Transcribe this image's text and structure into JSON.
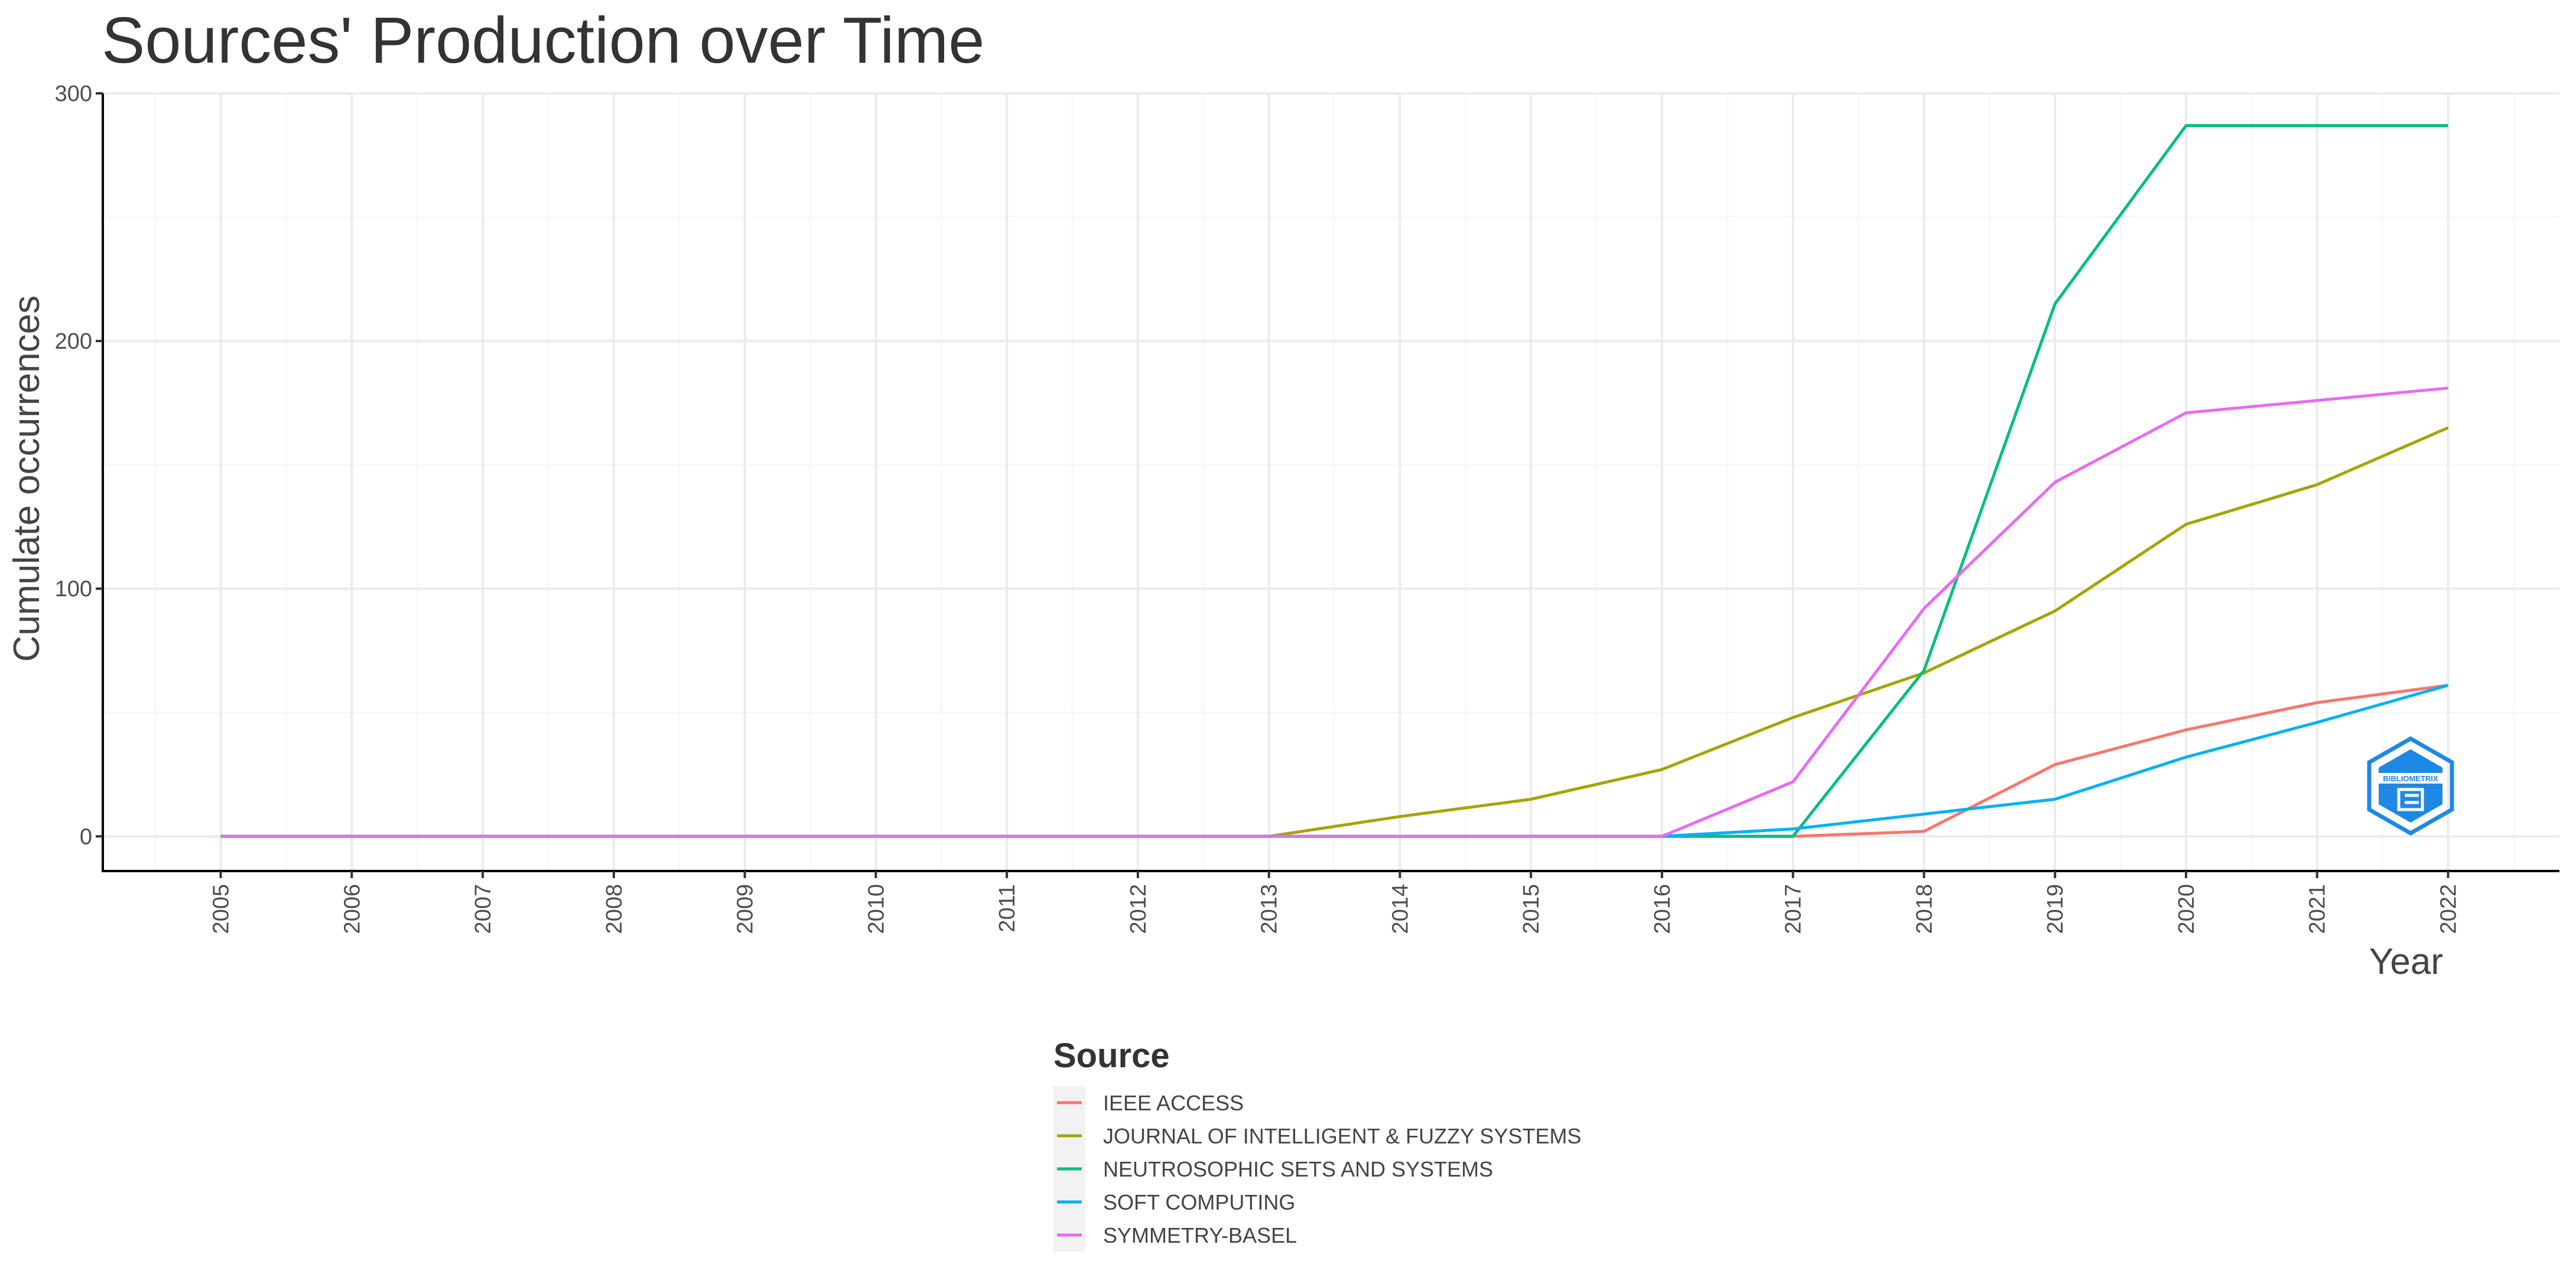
{
  "chart_data": {
    "type": "line",
    "title": "Sources' Production over Time",
    "xlabel": "Year",
    "ylabel": "Cumulate occurrences",
    "x": [
      2005,
      2006,
      2007,
      2008,
      2009,
      2010,
      2011,
      2012,
      2013,
      2014,
      2015,
      2016,
      2017,
      2018,
      2019,
      2020,
      2021,
      2022
    ],
    "x_tick_labels": [
      "2005",
      "2006",
      "2007",
      "2008",
      "2009",
      "2010",
      "2011",
      "2012",
      "2013",
      "2014",
      "2015",
      "2016",
      "2017",
      "2018",
      "2019",
      "2020",
      "2021",
      "2022"
    ],
    "xlim": [
      2004.1,
      2022.85
    ],
    "ylim": [
      -14,
      300
    ],
    "y_ticks": [
      0,
      100,
      200,
      300
    ],
    "y_tick_labels": [
      "0",
      "100",
      "200",
      "300"
    ],
    "grid": true,
    "legend": {
      "title": "Source",
      "position": "bottom-center"
    },
    "series": [
      {
        "name": "IEEE ACCESS",
        "color": "#F8766D",
        "values": [
          0,
          0,
          0,
          0,
          0,
          0,
          0,
          0,
          0,
          0,
          0,
          0,
          0,
          2,
          29,
          43,
          54,
          61
        ]
      },
      {
        "name": "JOURNAL OF INTELLIGENT & FUZZY SYSTEMS",
        "color": "#A3A500",
        "values": [
          0,
          0,
          0,
          0,
          0,
          0,
          0,
          0,
          0,
          8,
          15,
          27,
          48,
          66,
          91,
          126,
          142,
          165
        ]
      },
      {
        "name": "NEUTROSOPHIC SETS AND SYSTEMS",
        "color": "#00BF7D",
        "values": [
          0,
          0,
          0,
          0,
          0,
          0,
          0,
          0,
          0,
          0,
          0,
          0,
          0,
          67,
          215,
          287,
          287,
          287
        ]
      },
      {
        "name": "SOFT COMPUTING",
        "color": "#00B0F6",
        "values": [
          0,
          0,
          0,
          0,
          0,
          0,
          0,
          0,
          0,
          0,
          0,
          0,
          3,
          9,
          15,
          32,
          46,
          61
        ]
      },
      {
        "name": "SYMMETRY-BASEL",
        "color": "#E76BF3",
        "values": [
          0,
          0,
          0,
          0,
          0,
          0,
          0,
          0,
          0,
          0,
          0,
          0,
          22,
          92,
          143,
          171,
          176,
          181
        ]
      }
    ]
  },
  "logo": {
    "icon": "bibliometrix-logo-icon",
    "text": "BIBLIOMETRIX",
    "color": "#1E88E5"
  }
}
